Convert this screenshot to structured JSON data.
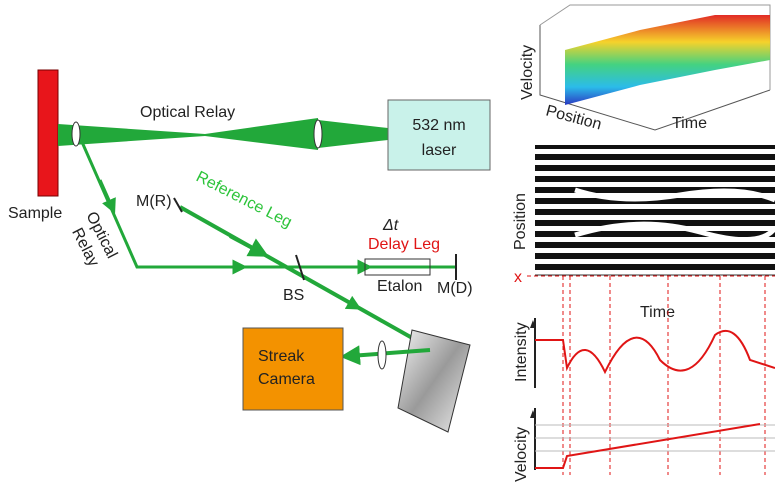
{
  "left": {
    "sample": "Sample",
    "optical_relay_top": "Optical Relay",
    "laser": [
      "532 nm",
      "laser"
    ],
    "optical_relay_side": [
      "Optical",
      "Relay"
    ],
    "reference_leg": "Reference Leg",
    "mirror_ref": "M(R)",
    "delta_t": "Δt",
    "delay_leg": "Delay Leg",
    "etalon": "Etalon",
    "mirror_delay": "M(D)",
    "beam_splitter": "BS",
    "streak_camera": [
      "Streak",
      "Camera"
    ]
  },
  "right": {
    "surface_plot": {
      "z_label": "Velocity",
      "x_label": "Position",
      "y_label": "Time"
    },
    "streak_image": {
      "y_label": "Position",
      "x_label": "Time",
      "marker": "x"
    },
    "intensity_plot": {
      "y_label": "Intensity"
    },
    "velocity_plot": {
      "y_label": "Velocity"
    }
  }
}
